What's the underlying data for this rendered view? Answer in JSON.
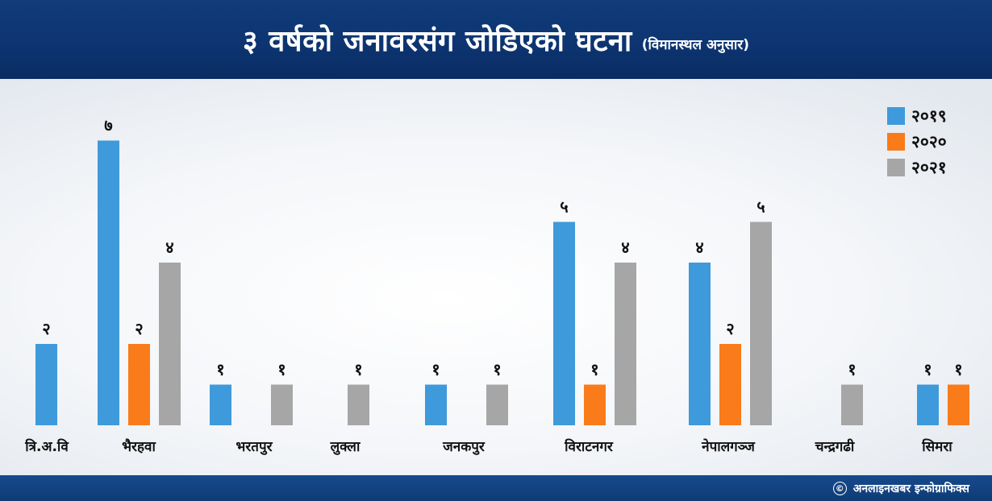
{
  "header": {
    "title": "३ वर्षको जनावरसंग जोडिएको घटना",
    "subtitle": "(विमानस्थल अनुसार)"
  },
  "footer": {
    "copyright_symbol": "©",
    "credit": "अनलाइनखबर इन्फोग्राफिक्स"
  },
  "chart_data": {
    "type": "bar",
    "title": "३ वर्षको जनावरसंग जोडिएको घटना",
    "subtitle": "(विमानस्थल अनुसार)",
    "categories": [
      "त्रि.अ.वि",
      "भैरहवा",
      "भरतपुर",
      "लुक्ला",
      "जनकपुर",
      "विराटनगर",
      "नेपालगञ्ज",
      "चन्द्रगढी",
      "सिमरा"
    ],
    "series": [
      {
        "name": "२०१९",
        "color": "#3e9adb",
        "values": [
          2,
          7,
          1,
          null,
          1,
          5,
          4,
          null,
          1
        ]
      },
      {
        "name": "२०२०",
        "color": "#f97b1a",
        "values": [
          null,
          2,
          null,
          null,
          null,
          1,
          2,
          null,
          1
        ]
      },
      {
        "name": "२०२१",
        "color": "#a6a6a6",
        "values": [
          null,
          4,
          1,
          1,
          1,
          4,
          5,
          1,
          null
        ]
      }
    ],
    "value_labels": {
      "1": "१",
      "2": "२",
      "4": "४",
      "5": "५",
      "7": "७"
    },
    "ylim": [
      0,
      7
    ],
    "grid": false,
    "legend_position": "top-right"
  }
}
